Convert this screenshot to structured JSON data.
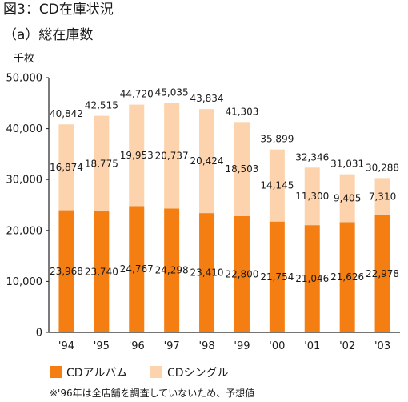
{
  "figure_title": "図3：CD在庫状況",
  "figure_subtitle": "（a）総在庫数",
  "footnote": "※'96年は全店舗を調査していないため、予想値",
  "colors": {
    "album": "#f47e12",
    "single": "#fcd3ac",
    "axis": "#222222"
  },
  "chart_data": {
    "type": "bar",
    "stacked": true,
    "title": "",
    "xlabel": "",
    "ylabel": "千枚",
    "ylim": [
      0,
      50000
    ],
    "yticks": [
      "50,000",
      "40,000",
      "30,000",
      "20,000",
      "10,000",
      "0"
    ],
    "ytick_values": [
      50000,
      40000,
      30000,
      20000,
      10000,
      0
    ],
    "categories": [
      "'94",
      "'95",
      "'96",
      "'97",
      "'98",
      "'99",
      "'00",
      "'01",
      "'02",
      "'03"
    ],
    "series": [
      {
        "name": "CDアルバム",
        "values": [
          23968,
          23740,
          24767,
          24298,
          23410,
          22800,
          21754,
          21046,
          21626,
          22978
        ],
        "labels": [
          "23,968",
          "23,740",
          "24,767",
          "24,298",
          "23,410",
          "22,800",
          "21,754",
          "21,046",
          "21,626",
          "22,978"
        ]
      },
      {
        "name": "CDシングル",
        "values": [
          16874,
          18775,
          19953,
          20737,
          20424,
          18503,
          14145,
          11300,
          9405,
          7310
        ],
        "labels": [
          "16,874",
          "18,775",
          "19,953",
          "20,737",
          "20,424",
          "18,503",
          "14,145",
          "11,300",
          "9,405",
          "7,310"
        ]
      }
    ],
    "totals": [
      40842,
      42515,
      44720,
      45035,
      43834,
      41303,
      35899,
      32346,
      31031,
      30288
    ],
    "total_labels": [
      "40,842",
      "42,515",
      "44,720",
      "45,035",
      "43,834",
      "41,303",
      "35,899",
      "32,346",
      "31,031",
      "30,288"
    ],
    "legend_position": "bottom-left",
    "grid": false
  }
}
